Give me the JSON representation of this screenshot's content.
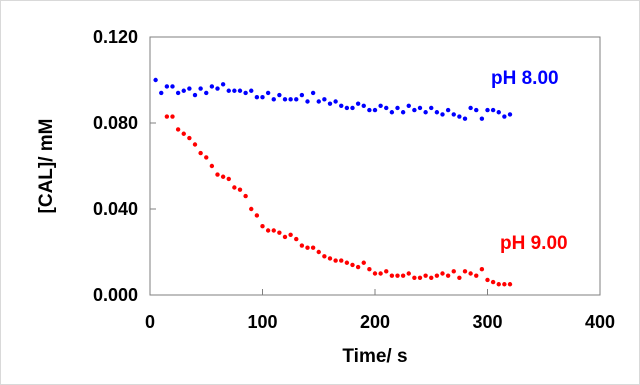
{
  "chart_data": {
    "type": "scatter",
    "title": "",
    "xlabel": "Time/ s",
    "ylabel": "[CAL]/ mM",
    "xlim": [
      0,
      400
    ],
    "ylim": [
      0,
      0.12
    ],
    "xticks": [
      "0",
      "100",
      "200",
      "300",
      "400"
    ],
    "yticks": [
      "0.000",
      "0.040",
      "0.080",
      "0.120"
    ],
    "grid": false,
    "legend": "none",
    "series": [
      {
        "name": "pH 8.00",
        "color": "#0000ff",
        "x": [
          5,
          10,
          15,
          20,
          25,
          30,
          35,
          40,
          45,
          50,
          55,
          60,
          65,
          70,
          75,
          80,
          85,
          90,
          95,
          100,
          105,
          110,
          115,
          120,
          125,
          130,
          135,
          140,
          145,
          150,
          155,
          160,
          165,
          170,
          175,
          180,
          185,
          190,
          195,
          200,
          205,
          210,
          215,
          220,
          225,
          230,
          235,
          240,
          245,
          250,
          255,
          260,
          265,
          270,
          275,
          280,
          285,
          290,
          295,
          300,
          305,
          310,
          315,
          320
        ],
        "y": [
          0.1,
          0.094,
          0.097,
          0.097,
          0.094,
          0.095,
          0.096,
          0.093,
          0.096,
          0.094,
          0.097,
          0.096,
          0.098,
          0.095,
          0.095,
          0.095,
          0.094,
          0.095,
          0.092,
          0.092,
          0.094,
          0.091,
          0.093,
          0.091,
          0.091,
          0.091,
          0.093,
          0.09,
          0.094,
          0.09,
          0.091,
          0.089,
          0.09,
          0.088,
          0.087,
          0.087,
          0.089,
          0.088,
          0.086,
          0.086,
          0.088,
          0.087,
          0.085,
          0.087,
          0.085,
          0.088,
          0.086,
          0.087,
          0.085,
          0.087,
          0.085,
          0.084,
          0.086,
          0.084,
          0.083,
          0.082,
          0.087,
          0.086,
          0.082,
          0.086,
          0.086,
          0.085,
          0.083,
          0.084
        ]
      },
      {
        "name": "pH 9.00",
        "color": "#ff0000",
        "x": [
          15,
          20,
          25,
          30,
          35,
          40,
          45,
          50,
          55,
          60,
          65,
          70,
          75,
          80,
          85,
          90,
          95,
          100,
          105,
          110,
          115,
          120,
          125,
          130,
          135,
          140,
          145,
          150,
          155,
          160,
          165,
          170,
          175,
          180,
          185,
          190,
          195,
          200,
          205,
          210,
          215,
          220,
          225,
          230,
          235,
          240,
          245,
          250,
          255,
          260,
          265,
          270,
          275,
          280,
          285,
          290,
          295,
          300,
          305,
          310,
          315,
          320
        ],
        "y": [
          0.083,
          0.083,
          0.077,
          0.075,
          0.073,
          0.07,
          0.066,
          0.064,
          0.06,
          0.056,
          0.055,
          0.054,
          0.05,
          0.049,
          0.046,
          0.04,
          0.037,
          0.032,
          0.03,
          0.03,
          0.029,
          0.027,
          0.028,
          0.026,
          0.023,
          0.022,
          0.022,
          0.02,
          0.018,
          0.017,
          0.016,
          0.016,
          0.015,
          0.014,
          0.013,
          0.015,
          0.012,
          0.01,
          0.01,
          0.011,
          0.009,
          0.009,
          0.009,
          0.01,
          0.008,
          0.008,
          0.009,
          0.008,
          0.009,
          0.01,
          0.009,
          0.011,
          0.008,
          0.011,
          0.01,
          0.009,
          0.012,
          0.007,
          0.006,
          0.005,
          0.005,
          0.005
        ]
      }
    ]
  }
}
